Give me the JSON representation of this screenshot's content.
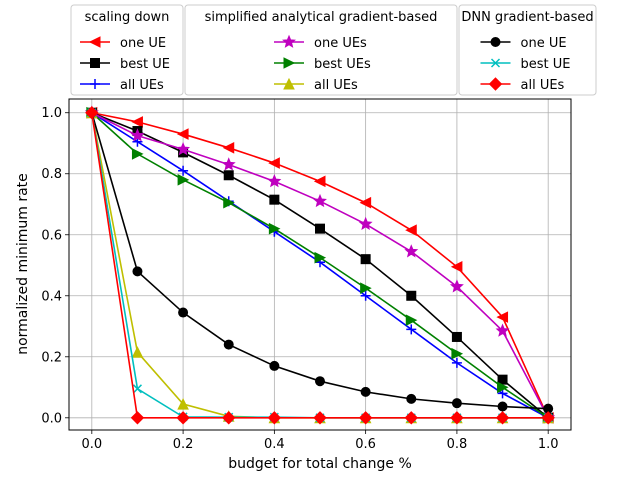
{
  "chart_data": {
    "type": "line",
    "xlabel": "budget for total change %",
    "ylabel": "normalized minimum rate",
    "xlim": [
      -0.05,
      1.05
    ],
    "ylim": [
      -0.04,
      1.045
    ],
    "xticks": [
      "0.0",
      "0.2",
      "0.4",
      "0.6",
      "0.8",
      "1.0"
    ],
    "yticks": [
      "0.0",
      "0.2",
      "0.4",
      "0.6",
      "0.8",
      "1.0"
    ],
    "grid": true,
    "x": [
      0.0,
      0.1,
      0.2,
      0.3,
      0.4,
      0.5,
      0.6,
      0.7,
      0.8,
      0.9,
      1.0
    ],
    "legend": {
      "placement": "top, outside plot",
      "groups": [
        {
          "title": "scaling down",
          "entries": [
            0,
            1,
            2
          ]
        },
        {
          "title": "simplified analytical gradient-based",
          "entries": [
            3,
            4,
            5
          ]
        },
        {
          "title": "DNN gradient-based",
          "entries": [
            6,
            7,
            8
          ]
        }
      ]
    },
    "series": [
      {
        "name": "one UE",
        "color": "#ff0000",
        "marker": "triangle-left",
        "values": [
          1.0,
          0.97,
          0.93,
          0.885,
          0.835,
          0.775,
          0.705,
          0.615,
          0.495,
          0.33,
          0.0
        ]
      },
      {
        "name": "best UE",
        "color": "#000000",
        "marker": "square",
        "values": [
          1.0,
          0.94,
          0.87,
          0.795,
          0.715,
          0.62,
          0.52,
          0.4,
          0.265,
          0.125,
          0.0
        ]
      },
      {
        "name": "all UEs",
        "color": "#0000ff",
        "marker": "plus",
        "values": [
          1.0,
          0.905,
          0.81,
          0.71,
          0.61,
          0.51,
          0.4,
          0.29,
          0.18,
          0.08,
          0.0
        ]
      },
      {
        "name": "one UEs",
        "color": "#bf00bf",
        "marker": "star",
        "values": [
          1.0,
          0.925,
          0.88,
          0.83,
          0.775,
          0.71,
          0.635,
          0.545,
          0.43,
          0.285,
          0.0
        ]
      },
      {
        "name": "best UEs",
        "color": "#008000",
        "marker": "triangle-right",
        "values": [
          1.0,
          0.865,
          0.78,
          0.705,
          0.62,
          0.525,
          0.425,
          0.32,
          0.21,
          0.1,
          0.0
        ]
      },
      {
        "name": "all UEs",
        "color": "#bfbf00",
        "marker": "triangle-up",
        "values": [
          1.0,
          0.215,
          0.045,
          0.005,
          0.0,
          0.0,
          0.0,
          0.0,
          0.0,
          0.0,
          0.0
        ]
      },
      {
        "name": "one UE",
        "color": "#000000",
        "marker": "circle",
        "values": [
          1.0,
          0.48,
          0.345,
          0.24,
          0.17,
          0.12,
          0.085,
          0.062,
          0.048,
          0.037,
          0.03
        ]
      },
      {
        "name": "best UE",
        "color": "#00bfbf",
        "marker": "x",
        "values": [
          1.0,
          0.095,
          0.003,
          0.002,
          0.002,
          0.0,
          0.0,
          0.0,
          0.0,
          0.0,
          0.0
        ]
      },
      {
        "name": "all UEs",
        "color": "#ff0000",
        "marker": "diamond",
        "values": [
          1.0,
          0.0,
          0.0,
          0.0,
          0.0,
          0.0,
          0.0,
          0.0,
          0.0,
          0.0,
          0.0
        ]
      }
    ]
  }
}
